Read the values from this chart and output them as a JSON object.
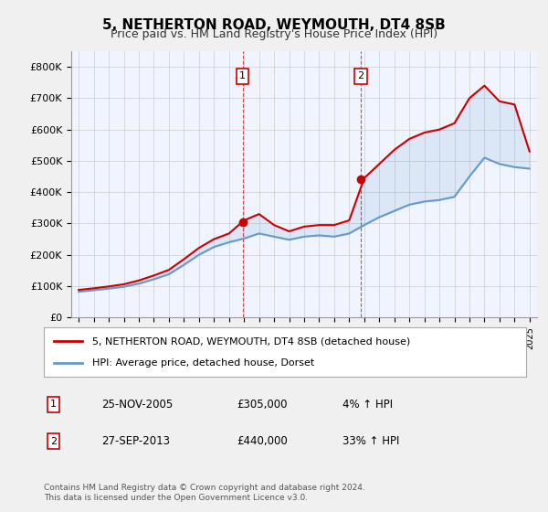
{
  "title": "5, NETHERTON ROAD, WEYMOUTH, DT4 8SB",
  "subtitle": "Price paid vs. HM Land Registry's House Price Index (HPI)",
  "hpi_label": "HPI: Average price, detached house, Dorset",
  "property_label": "5, NETHERTON ROAD, WEYMOUTH, DT4 8SB (detached house)",
  "footer": "Contains HM Land Registry data © Crown copyright and database right 2024.\nThis data is licensed under the Open Government Licence v3.0.",
  "property_color": "#cc0000",
  "hpi_color": "#6699cc",
  "background_color": "#f0f4ff",
  "plot_bg": "#ffffff",
  "ylim": [
    0,
    850000
  ],
  "yticks": [
    0,
    100000,
    200000,
    300000,
    400000,
    500000,
    600000,
    700000,
    800000
  ],
  "transactions": [
    {
      "num": 1,
      "date": "25-NOV-2005",
      "price": 305000,
      "pct": "4%",
      "direction": "↑",
      "year": 2005.9
    },
    {
      "num": 2,
      "date": "27-SEP-2013",
      "price": 440000,
      "pct": "33%",
      "direction": "↑",
      "year": 2013.75
    }
  ],
  "hpi_years": [
    1995,
    1996,
    1997,
    1998,
    1999,
    2000,
    2001,
    2002,
    2003,
    2004,
    2005,
    2006,
    2007,
    2008,
    2009,
    2010,
    2011,
    2012,
    2013,
    2014,
    2015,
    2016,
    2017,
    2018,
    2019,
    2020,
    2021,
    2022,
    2023,
    2024,
    2025
  ],
  "hpi_values": [
    82000,
    87000,
    92000,
    98000,
    108000,
    122000,
    138000,
    168000,
    200000,
    225000,
    240000,
    252000,
    268000,
    258000,
    248000,
    258000,
    262000,
    258000,
    268000,
    295000,
    320000,
    340000,
    360000,
    370000,
    375000,
    385000,
    450000,
    510000,
    490000,
    480000,
    475000
  ],
  "property_years": [
    1995,
    1996,
    1997,
    1998,
    1999,
    2000,
    2001,
    2002,
    2003,
    2004,
    2005,
    2006,
    2007,
    2008,
    2009,
    2010,
    2011,
    2012,
    2013,
    2014,
    2015,
    2016,
    2017,
    2018,
    2019,
    2020,
    2021,
    2022,
    2023,
    2024,
    2025
  ],
  "property_values": [
    88000,
    93000,
    99000,
    106000,
    118000,
    134000,
    152000,
    186000,
    222000,
    250000,
    268000,
    310000,
    330000,
    295000,
    275000,
    290000,
    295000,
    295000,
    310000,
    445000,
    490000,
    535000,
    570000,
    590000,
    600000,
    620000,
    700000,
    740000,
    690000,
    680000,
    530000
  ]
}
